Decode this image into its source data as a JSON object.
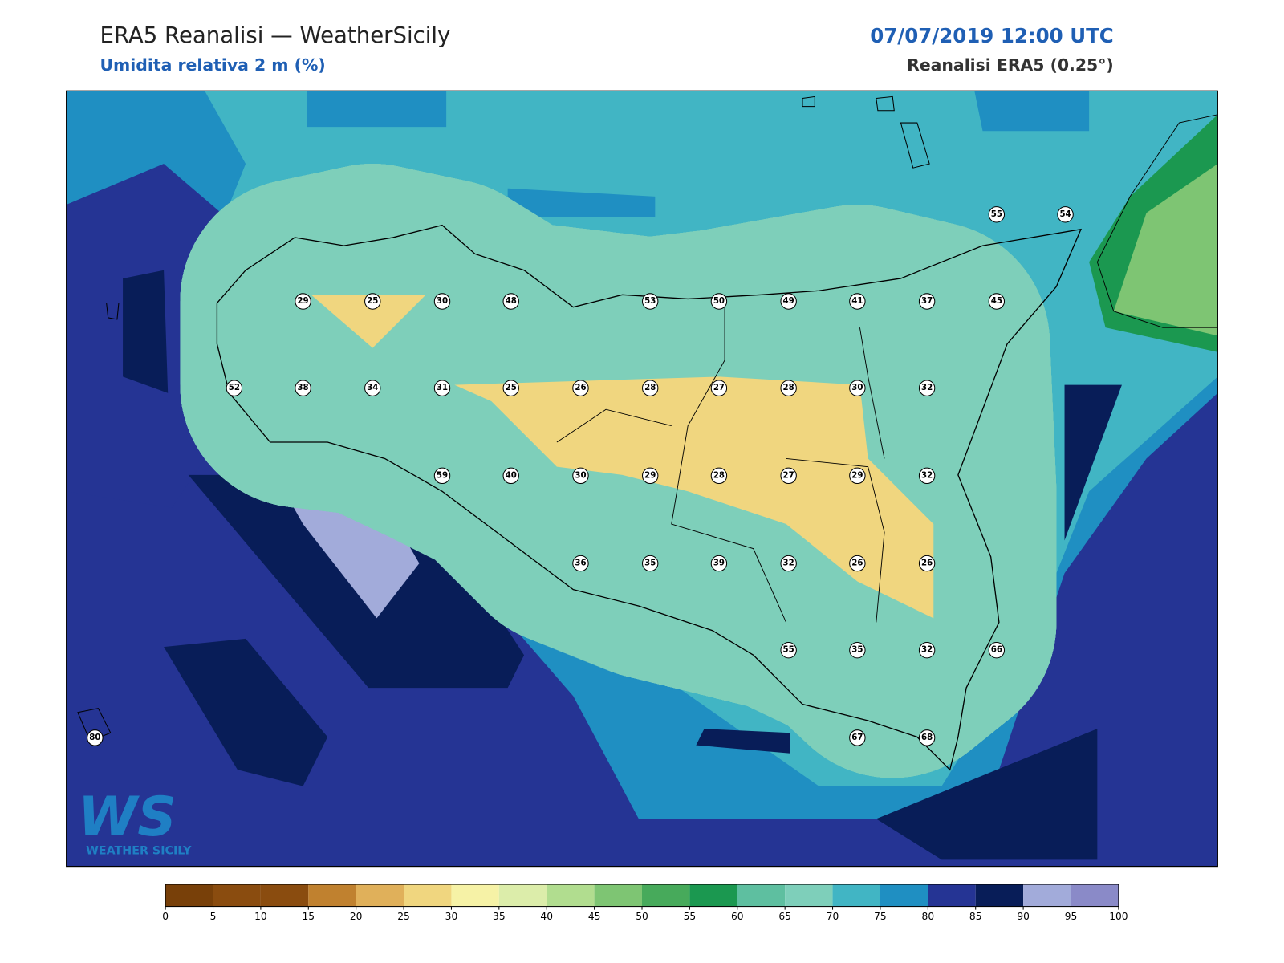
{
  "header": {
    "title": "ERA5 Reanalisi — WeatherSicily",
    "subtitle": "Umidita relativa 2 m (%)",
    "datetime": "07/07/2019 12:00 UTC",
    "source": "Reanalisi ERA5 (0.25°)"
  },
  "stations": {
    "values": [
      29,
      25,
      30,
      48,
      53,
      50,
      49,
      41,
      37,
      45,
      55,
      54,
      52,
      38,
      34,
      31,
      25,
      26,
      28,
      27,
      28,
      30,
      32,
      59,
      40,
      30,
      29,
      28,
      27,
      29,
      32,
      36,
      35,
      39,
      32,
      26,
      26,
      55,
      35,
      32,
      66,
      80,
      67,
      68
    ]
  },
  "colorbar": {
    "ticks": [
      0,
      5,
      10,
      15,
      20,
      25,
      30,
      35,
      40,
      45,
      50,
      55,
      60,
      65,
      70,
      75,
      80,
      85,
      90,
      95,
      100
    ],
    "colors": [
      "#784009",
      "#8a4c0f",
      "#8a4c0f",
      "#c0812f",
      "#e0b05a",
      "#f0d67f",
      "#f6f2a6",
      "#dcedaa",
      "#b1dd8f",
      "#7ec573",
      "#47aa5b",
      "#1b9850",
      "#5ebfa0",
      "#7ecfba",
      "#41b5c4",
      "#1f8fc2",
      "#253494",
      "#081d58",
      "#a2abda",
      "#8a8ac8"
    ]
  },
  "logo": {
    "mark": "WS",
    "text": "WEATHER SICILY"
  }
}
